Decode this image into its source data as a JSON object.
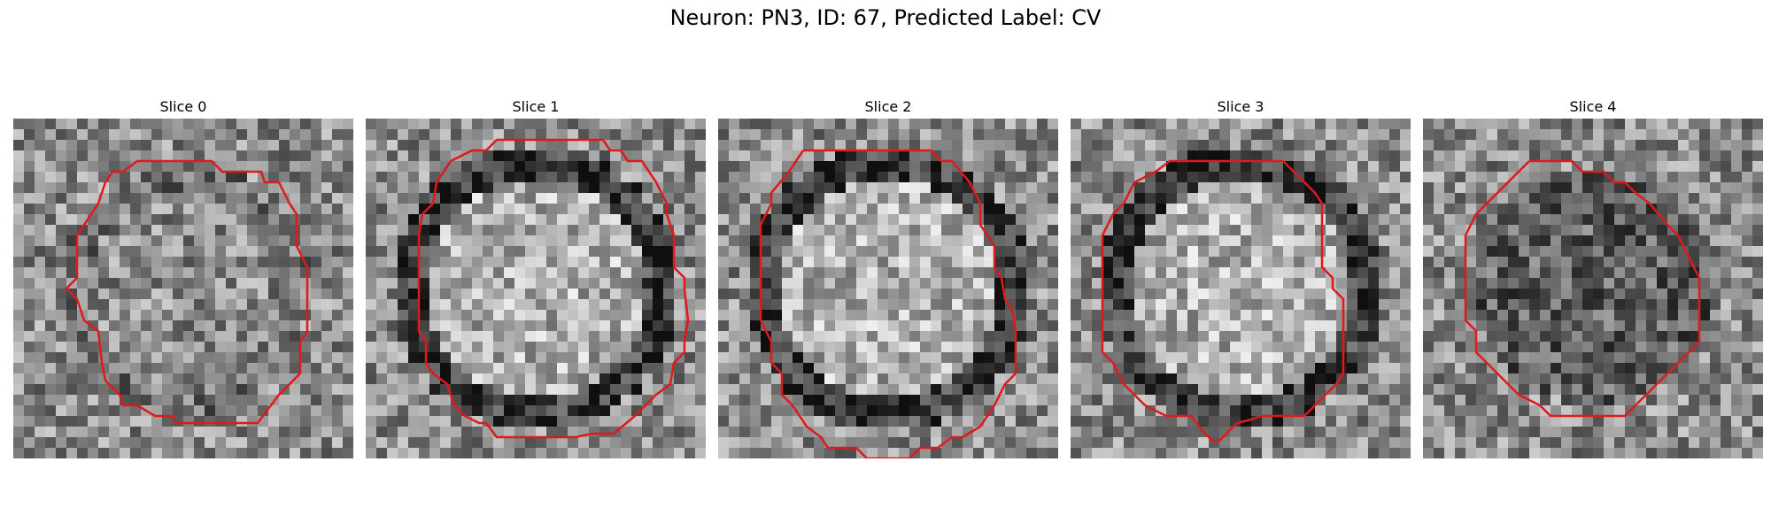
{
  "figure": {
    "title": "Neuron: PN3, ID: 67, Predicted Label: CV"
  },
  "slices": [
    {
      "label": "Slice 0",
      "seed": 11,
      "blob": "mottled"
    },
    {
      "label": "Slice 1",
      "seed": 23,
      "blob": "ring"
    },
    {
      "label": "Slice 2",
      "seed": 37,
      "blob": "ring"
    },
    {
      "label": "Slice 3",
      "seed": 41,
      "blob": "ring"
    },
    {
      "label": "Slice 4",
      "seed": 59,
      "blob": "dark"
    }
  ],
  "contour_color": "#e0191b"
}
